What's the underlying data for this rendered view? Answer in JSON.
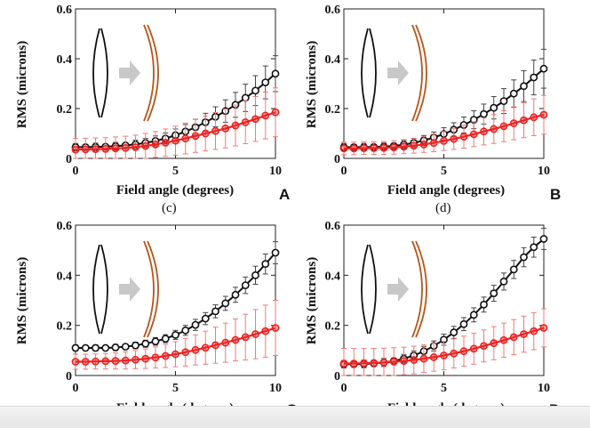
{
  "chart_data": [
    {
      "panel": "A",
      "type": "line",
      "subcaption": "(c)",
      "xlabel": "Field angle (degrees)",
      "ylabel": "RMS (microns)",
      "xlim": [
        0,
        10
      ],
      "ylim": [
        0,
        0.6
      ],
      "xticks": [
        "0",
        "5",
        "10"
      ],
      "yticks": [
        "0",
        "0.2",
        "0.4",
        "0.6"
      ],
      "x": [
        0,
        0.5,
        1,
        1.5,
        2,
        2.5,
        3,
        3.5,
        4,
        4.5,
        5,
        5.5,
        6,
        6.5,
        7,
        7.5,
        8,
        8.5,
        9,
        9.5,
        10
      ],
      "series": [
        {
          "name": "black",
          "color": "#111111",
          "values": [
            0.045,
            0.045,
            0.046,
            0.047,
            0.049,
            0.052,
            0.056,
            0.062,
            0.07,
            0.08,
            0.093,
            0.108,
            0.125,
            0.145,
            0.167,
            0.19,
            0.215,
            0.243,
            0.272,
            0.305,
            0.34
          ],
          "errors": [
            0.015,
            0.015,
            0.015,
            0.015,
            0.015,
            0.016,
            0.017,
            0.018,
            0.02,
            0.022,
            0.025,
            0.028,
            0.032,
            0.036,
            0.04,
            0.045,
            0.05,
            0.055,
            0.06,
            0.066,
            0.072
          ]
        },
        {
          "name": "red",
          "color": "#ee2222",
          "values": [
            0.035,
            0.036,
            0.037,
            0.038,
            0.04,
            0.042,
            0.045,
            0.05,
            0.056,
            0.063,
            0.071,
            0.08,
            0.09,
            0.1,
            0.11,
            0.12,
            0.132,
            0.145,
            0.158,
            0.172,
            0.185
          ],
          "errors": [
            0.045,
            0.045,
            0.045,
            0.045,
            0.046,
            0.047,
            0.048,
            0.05,
            0.052,
            0.055,
            0.058,
            0.062,
            0.066,
            0.07,
            0.074,
            0.078,
            0.082,
            0.086,
            0.09,
            0.094,
            0.098
          ]
        }
      ]
    },
    {
      "panel": "B",
      "type": "line",
      "subcaption": "(d)",
      "xlabel": "Field angle (degrees)",
      "ylabel": "RMS (microns)",
      "xlim": [
        0,
        10
      ],
      "ylim": [
        0,
        0.6
      ],
      "xticks": [
        "0",
        "5",
        "10"
      ],
      "yticks": [
        "0",
        "0.2",
        "0.4",
        "0.6"
      ],
      "x": [
        0,
        0.5,
        1,
        1.5,
        2,
        2.5,
        3,
        3.5,
        4,
        4.5,
        5,
        5.5,
        6,
        6.5,
        7,
        7.5,
        8,
        8.5,
        9,
        9.5,
        10
      ],
      "series": [
        {
          "name": "black",
          "color": "#111111",
          "values": [
            0.045,
            0.045,
            0.045,
            0.046,
            0.047,
            0.05,
            0.055,
            0.062,
            0.072,
            0.084,
            0.098,
            0.115,
            0.134,
            0.155,
            0.178,
            0.203,
            0.23,
            0.26,
            0.29,
            0.325,
            0.36
          ],
          "errors": [
            0.015,
            0.015,
            0.015,
            0.015,
            0.015,
            0.016,
            0.017,
            0.018,
            0.02,
            0.022,
            0.025,
            0.028,
            0.032,
            0.036,
            0.04,
            0.045,
            0.05,
            0.055,
            0.062,
            0.07,
            0.078
          ]
        },
        {
          "name": "red",
          "color": "#ee2222",
          "values": [
            0.04,
            0.04,
            0.041,
            0.041,
            0.042,
            0.044,
            0.047,
            0.051,
            0.056,
            0.062,
            0.07,
            0.078,
            0.087,
            0.097,
            0.108,
            0.118,
            0.129,
            0.141,
            0.153,
            0.165,
            0.175
          ],
          "errors": [
            0.025,
            0.025,
            0.025,
            0.025,
            0.026,
            0.027,
            0.028,
            0.03,
            0.032,
            0.035,
            0.038,
            0.042,
            0.046,
            0.05,
            0.054,
            0.058,
            0.062,
            0.066,
            0.07,
            0.074,
            0.078
          ]
        }
      ]
    },
    {
      "panel": "C",
      "type": "line",
      "xlabel": "Field angle (degrees)",
      "ylabel": "RMS (microns)",
      "xlim": [
        0,
        10
      ],
      "ylim": [
        0,
        0.6
      ],
      "xticks": [
        "0",
        "5",
        "10"
      ],
      "yticks": [
        "0",
        "0.2",
        "0.4",
        "0.6"
      ],
      "x": [
        0,
        0.5,
        1,
        1.5,
        2,
        2.5,
        3,
        3.5,
        4,
        4.5,
        5,
        5.5,
        6,
        6.5,
        7,
        7.5,
        8,
        8.5,
        9,
        9.5,
        10
      ],
      "series": [
        {
          "name": "black",
          "color": "#111111",
          "values": [
            0.11,
            0.11,
            0.11,
            0.11,
            0.112,
            0.115,
            0.12,
            0.127,
            0.136,
            0.147,
            0.162,
            0.18,
            0.202,
            0.227,
            0.256,
            0.288,
            0.322,
            0.36,
            0.4,
            0.445,
            0.49
          ],
          "errors": [
            0.012,
            0.012,
            0.012,
            0.012,
            0.012,
            0.013,
            0.013,
            0.014,
            0.015,
            0.016,
            0.018,
            0.02,
            0.022,
            0.024,
            0.026,
            0.028,
            0.03,
            0.033,
            0.036,
            0.04,
            0.044
          ]
        },
        {
          "name": "red",
          "color": "#ee2222",
          "values": [
            0.055,
            0.055,
            0.056,
            0.057,
            0.058,
            0.06,
            0.063,
            0.067,
            0.072,
            0.078,
            0.085,
            0.093,
            0.102,
            0.111,
            0.121,
            0.131,
            0.142,
            0.153,
            0.165,
            0.177,
            0.19
          ],
          "errors": [
            0.03,
            0.03,
            0.03,
            0.031,
            0.032,
            0.034,
            0.036,
            0.039,
            0.042,
            0.046,
            0.05,
            0.055,
            0.06,
            0.066,
            0.072,
            0.078,
            0.084,
            0.091,
            0.098,
            0.104,
            0.11
          ]
        }
      ]
    },
    {
      "panel": "D",
      "type": "line",
      "xlabel": "Field angle (degrees)",
      "ylabel": "RMS (microns)",
      "xlim": [
        0,
        10
      ],
      "ylim": [
        0,
        0.6
      ],
      "xticks": [
        "0",
        "5",
        "10"
      ],
      "yticks": [
        "0",
        "0.2",
        "0.4",
        "0.6"
      ],
      "x": [
        0,
        0.5,
        1,
        1.5,
        2,
        2.5,
        3,
        3.5,
        4,
        4.5,
        5,
        5.5,
        6,
        6.5,
        7,
        7.5,
        8,
        8.5,
        9,
        9.5,
        10
      ],
      "series": [
        {
          "name": "black",
          "color": "#111111",
          "values": [
            0.045,
            0.045,
            0.046,
            0.048,
            0.052,
            0.058,
            0.067,
            0.08,
            0.097,
            0.118,
            0.143,
            0.172,
            0.205,
            0.242,
            0.283,
            0.328,
            0.375,
            0.423,
            0.472,
            0.512,
            0.545
          ],
          "errors": [
            0.015,
            0.015,
            0.015,
            0.015,
            0.016,
            0.016,
            0.017,
            0.018,
            0.019,
            0.02,
            0.022,
            0.024,
            0.026,
            0.028,
            0.03,
            0.032,
            0.034,
            0.036,
            0.038,
            0.04,
            0.042
          ]
        },
        {
          "name": "red",
          "color": "#ee2222",
          "values": [
            0.048,
            0.048,
            0.049,
            0.05,
            0.052,
            0.055,
            0.058,
            0.062,
            0.067,
            0.073,
            0.08,
            0.088,
            0.097,
            0.107,
            0.118,
            0.129,
            0.141,
            0.153,
            0.165,
            0.177,
            0.19
          ],
          "errors": [
            0.06,
            0.06,
            0.059,
            0.058,
            0.057,
            0.056,
            0.055,
            0.055,
            0.055,
            0.056,
            0.057,
            0.058,
            0.06,
            0.062,
            0.064,
            0.066,
            0.068,
            0.07,
            0.072,
            0.074,
            0.076
          ]
        }
      ]
    }
  ]
}
